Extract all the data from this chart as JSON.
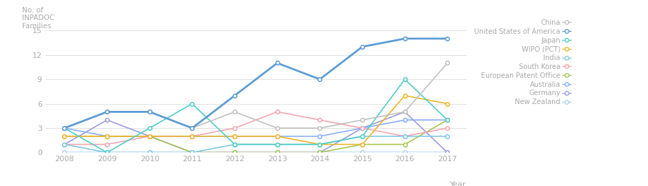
{
  "years": [
    2008,
    2009,
    2010,
    2011,
    2012,
    2013,
    2014,
    2015,
    2016,
    2017
  ],
  "series": {
    "United States of America": {
      "values": [
        3,
        5,
        5,
        3,
        7,
        11,
        9,
        13,
        14,
        14
      ],
      "color": "#5b9bd5",
      "linewidth": 2.0,
      "zorder": 10
    },
    "China": {
      "values": [
        3,
        5,
        5,
        3,
        5,
        3,
        3,
        4,
        5,
        11
      ],
      "color": "#c0c0c0",
      "linewidth": 1.2,
      "zorder": 9
    },
    "Japan": {
      "values": [
        3,
        0,
        3,
        6,
        1,
        1,
        1,
        2,
        9,
        4
      ],
      "color": "#4ecdc4",
      "linewidth": 1.2,
      "zorder": 8
    },
    "WIPO (PCT)": {
      "values": [
        2,
        2,
        2,
        2,
        2,
        2,
        1,
        1,
        7,
        6
      ],
      "color": "#f0b429",
      "linewidth": 1.2,
      "zorder": 7
    },
    "India": {
      "values": [
        1,
        0,
        0,
        0,
        1,
        1,
        1,
        2,
        2,
        2
      ],
      "color": "#7ec8e3",
      "linewidth": 1.2,
      "zorder": 6
    },
    "South Korea": {
      "values": [
        1,
        1,
        2,
        2,
        3,
        5,
        4,
        3,
        2,
        3
      ],
      "color": "#f4a5b0",
      "linewidth": 1.2,
      "zorder": 5
    },
    "European Patent Office": {
      "values": [
        2,
        2,
        2,
        0,
        0,
        0,
        0,
        1,
        1,
        4
      ],
      "color": "#a8c44e",
      "linewidth": 1.2,
      "zorder": 4
    },
    "Australia": {
      "values": [
        3,
        2,
        2,
        2,
        2,
        2,
        2,
        3,
        4,
        4
      ],
      "color": "#85aef5",
      "linewidth": 1.2,
      "zorder": 3
    },
    "Germany": {
      "values": [
        1,
        4,
        2,
        0,
        0,
        0,
        0,
        3,
        5,
        0
      ],
      "color": "#9b9be0",
      "linewidth": 1.2,
      "zorder": 2
    },
    "New Zealand": {
      "values": [
        0,
        0,
        0,
        0,
        0,
        0,
        0,
        0,
        0,
        0
      ],
      "color": "#b0d0f0",
      "linewidth": 1.2,
      "zorder": 1
    }
  },
  "legend_order": [
    "China",
    "United States of America",
    "Japan",
    "WIPO (PCT)",
    "India",
    "South Korea",
    "European Patent Office",
    "Australia",
    "Germany",
    "New Zealand"
  ],
  "legend_colors": {
    "China": "#c0c0c0",
    "United States of America": "#5b9bd5",
    "Japan": "#4ecdc4",
    "WIPO (PCT)": "#f0b429",
    "India": "#7ec8e3",
    "South Korea": "#f4a5b0",
    "European Patent Office": "#a8c44e",
    "Australia": "#85aef5",
    "Germany": "#9b9be0",
    "New Zealand": "#b0d0f0"
  },
  "ylabel": "No. of\nINPADOC\nFamilies",
  "xlabel": "Year",
  "ylim": [
    0,
    16
  ],
  "yticks": [
    0,
    3,
    6,
    9,
    12,
    15
  ],
  "xticks": [
    2008,
    2009,
    2010,
    2011,
    2012,
    2013,
    2014,
    2015,
    2016,
    2017
  ],
  "bg_color": "#ffffff",
  "grid_color": "#e0e0e0",
  "tick_color": "#aaaaaa",
  "label_color": "#aaaaaa"
}
